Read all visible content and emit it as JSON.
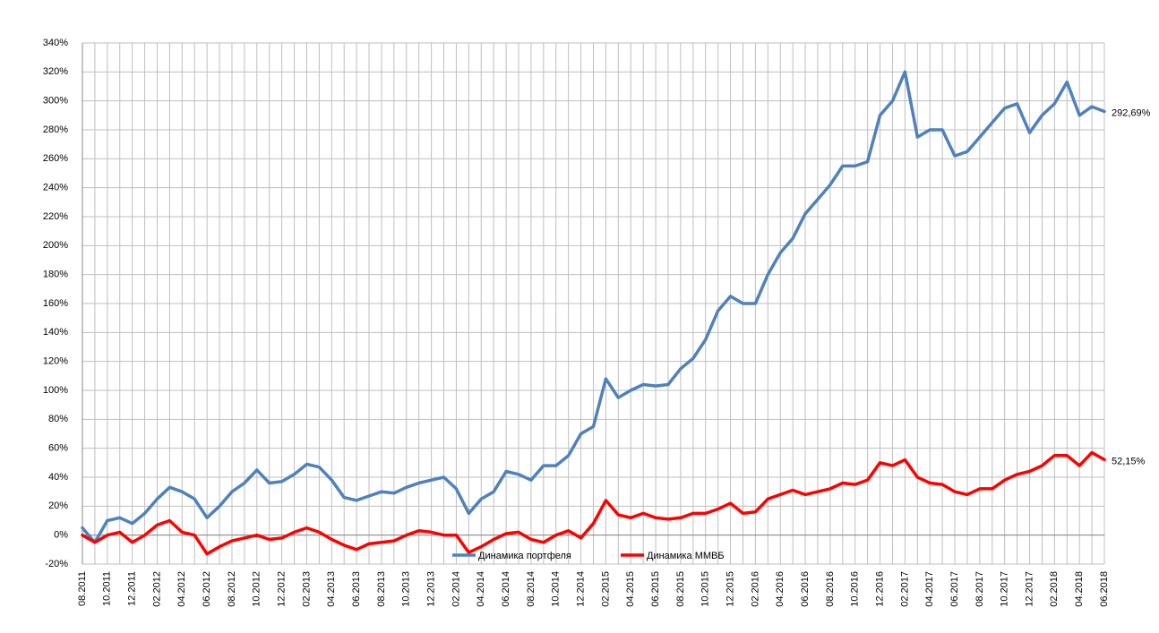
{
  "chart_data": {
    "type": "line",
    "categories": [
      "08.2011",
      null,
      "10.2011",
      null,
      "12.2011",
      null,
      "02.2012",
      null,
      "04.2012",
      null,
      "06.2012",
      null,
      "08.2012",
      null,
      "10.2012",
      null,
      "12.2012",
      null,
      "02.2013",
      null,
      "04.2013",
      null,
      "06.2013",
      null,
      "08.2013",
      null,
      "10.2013",
      null,
      "12.2013",
      null,
      "02.2014",
      null,
      "04.2014",
      null,
      "06.2014",
      null,
      "08.2014",
      null,
      "10.2014",
      null,
      "12.2014",
      null,
      "02.2015",
      null,
      "04.2015",
      null,
      "06.2015",
      null,
      "08.2015",
      null,
      "10.2015",
      null,
      "12.2015",
      null,
      "02.2016",
      null,
      "04.2016",
      null,
      "06.2016",
      null,
      "08.2016",
      null,
      "10.2016",
      null,
      "12.2016",
      null,
      "02.2017",
      null,
      "04.2017",
      null,
      "06.2017",
      null,
      "08.2017",
      null,
      "10.2017",
      null,
      "12.2017",
      null,
      "02.2018",
      null,
      "04.2018",
      null,
      "06.2018"
    ],
    "series": [
      {
        "name": "Динамика портфеля",
        "color": "#4f81bd",
        "values": [
          5,
          -5,
          10,
          12,
          8,
          15,
          25,
          33,
          30,
          25,
          12,
          20,
          30,
          36,
          45,
          36,
          37,
          42,
          49,
          47,
          38,
          26,
          24,
          27,
          30,
          29,
          33,
          36,
          38,
          40,
          32,
          15,
          25,
          30,
          44,
          42,
          38,
          48,
          48,
          55,
          70,
          75,
          108,
          95,
          100,
          104,
          103,
          104,
          115,
          122,
          135,
          155,
          165,
          160,
          160,
          180,
          195,
          205,
          222,
          232,
          242,
          255,
          255,
          258,
          290,
          300,
          320,
          275,
          280,
          280,
          262,
          265,
          275,
          285,
          295,
          298,
          278,
          290,
          298,
          313,
          290,
          296,
          292.69
        ],
        "value_labels": [
          null,
          null,
          null,
          null,
          null,
          null,
          null,
          null,
          null,
          null,
          null,
          null,
          null,
          null,
          null,
          null,
          null,
          null,
          null,
          null,
          null,
          null,
          null,
          null,
          null,
          null,
          null,
          null,
          null,
          null,
          null,
          null,
          null,
          null,
          null,
          null,
          null,
          null,
          null,
          null,
          null,
          null,
          null,
          null,
          null,
          null,
          null,
          null,
          null,
          null,
          null,
          null,
          null,
          null,
          null,
          null,
          null,
          null,
          null,
          null,
          null,
          null,
          null,
          null,
          null,
          null,
          null,
          null,
          null,
          null,
          null,
          null,
          null,
          null,
          null,
          null,
          null,
          null,
          null,
          null,
          null,
          null,
          "292,69%"
        ]
      },
      {
        "name": "Динамика ММВБ",
        "color": "#ff0000",
        "values": [
          0,
          -5,
          0,
          2,
          -5,
          0,
          7,
          10,
          2,
          0,
          -13,
          -8,
          -4,
          -2,
          0,
          -3,
          -2,
          2,
          5,
          2,
          -3,
          -7,
          -10,
          -6,
          -5,
          -4,
          0,
          3,
          2,
          0,
          0,
          -12,
          -8,
          -3,
          1,
          2,
          -3,
          -5,
          0,
          3,
          -2,
          8,
          24,
          14,
          12,
          15,
          12,
          11,
          12,
          15,
          15,
          18,
          22,
          15,
          16,
          25,
          28,
          31,
          28,
          30,
          32,
          36,
          35,
          38,
          50,
          48,
          52,
          40,
          36,
          35,
          30,
          28,
          32,
          32,
          38,
          42,
          44,
          48,
          55,
          55,
          48,
          57,
          52.15
        ],
        "value_labels": [
          null,
          null,
          null,
          null,
          null,
          null,
          null,
          null,
          null,
          null,
          null,
          null,
          null,
          null,
          null,
          null,
          null,
          null,
          null,
          null,
          null,
          null,
          null,
          null,
          null,
          null,
          null,
          null,
          null,
          null,
          null,
          null,
          null,
          null,
          null,
          null,
          null,
          null,
          null,
          null,
          null,
          null,
          null,
          null,
          null,
          null,
          null,
          null,
          null,
          null,
          null,
          null,
          null,
          null,
          null,
          null,
          null,
          null,
          null,
          null,
          null,
          null,
          null,
          null,
          null,
          null,
          null,
          null,
          null,
          null,
          null,
          null,
          null,
          null,
          null,
          null,
          null,
          null,
          null,
          null,
          null,
          null,
          "52,15%"
        ]
      }
    ],
    "ylim": [
      -20,
      340
    ],
    "yticks": [
      {
        "value": -20,
        "label": "-20%"
      },
      {
        "value": 0,
        "label": "0%"
      },
      {
        "value": 20,
        "label": "20%"
      },
      {
        "value": 40,
        "label": "40%"
      },
      {
        "value": 60,
        "label": "60%"
      },
      {
        "value": 80,
        "label": "80%"
      },
      {
        "value": 100,
        "label": "100%"
      },
      {
        "value": 120,
        "label": "120%"
      },
      {
        "value": 140,
        "label": "140%"
      },
      {
        "value": 160,
        "label": "160%"
      },
      {
        "value": 180,
        "label": "180%"
      },
      {
        "value": 200,
        "label": "200%"
      },
      {
        "value": 220,
        "label": "220%"
      },
      {
        "value": 240,
        "label": "240%"
      },
      {
        "value": 260,
        "label": "260%"
      },
      {
        "value": 280,
        "label": "280%"
      },
      {
        "value": 300,
        "label": "300%"
      },
      {
        "value": 320,
        "label": "320%"
      },
      {
        "value": 340,
        "label": "340%"
      }
    ],
    "grid": true,
    "legend": "bottom"
  }
}
